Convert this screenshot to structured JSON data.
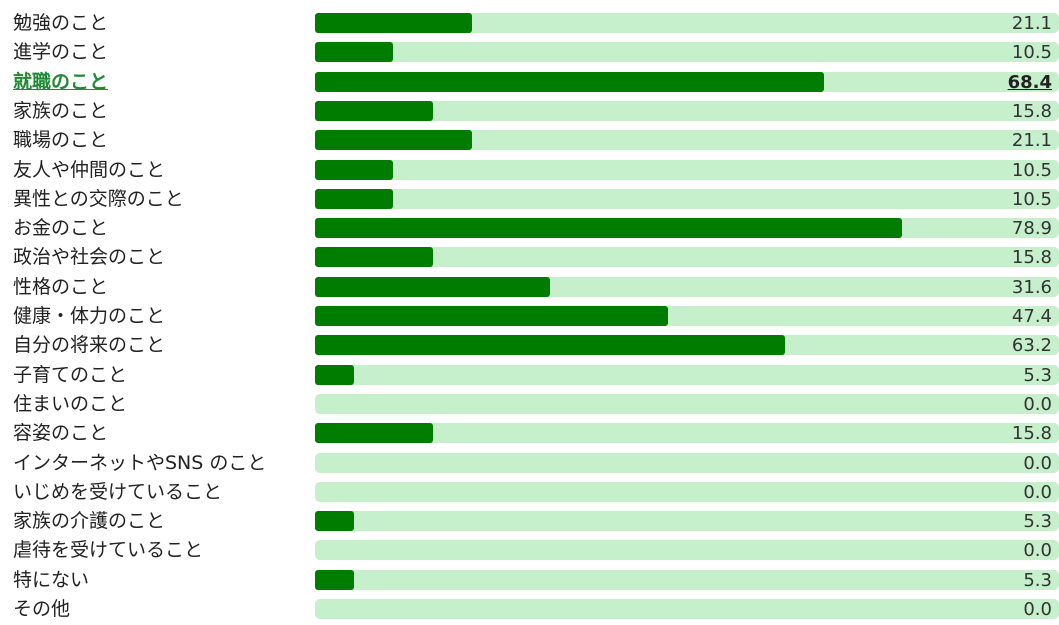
{
  "colors": {
    "track": "#c6efcb",
    "fill": "#007d00",
    "highlight_label": "#1e8a35",
    "text": "#222222"
  },
  "chart_data": {
    "type": "bar",
    "orientation": "horizontal",
    "highlighted_category": "就職のこと",
    "xlim": [
      0,
      100
    ],
    "grid": false,
    "legend": "none",
    "categories": [
      "勉強のこと",
      "進学のこと",
      "就職のこと",
      "家族のこと",
      "職場のこと",
      "友人や仲間のこと",
      "異性との交際のこと",
      "お金のこと",
      "政治や社会のこと",
      "性格のこと",
      "健康・体力のこと",
      "自分の将来のこと",
      "子育てのこと",
      "住まいのこと",
      "容姿のこと",
      "インターネットやSNS のこと",
      "いじめを受けていること",
      "家族の介護のこと",
      "虐待を受けていること",
      "特にない",
      "その他"
    ],
    "values": [
      21.1,
      10.5,
      68.4,
      15.8,
      21.1,
      10.5,
      10.5,
      78.9,
      15.8,
      31.6,
      47.4,
      63.2,
      5.3,
      0.0,
      15.8,
      0.0,
      0.0,
      5.3,
      0.0,
      5.3,
      0.0
    ]
  }
}
